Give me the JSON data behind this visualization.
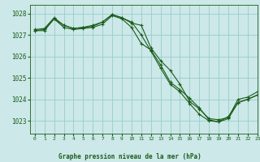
{
  "title": "Graphe pression niveau de la mer (hPa)",
  "background_color": "#cce8e8",
  "grid_color": "#99cccc",
  "line_color": "#1a5c1a",
  "xlim": [
    -0.5,
    23
  ],
  "ylim": [
    1022.4,
    1028.4
  ],
  "yticks": [
    1023,
    1024,
    1025,
    1026,
    1027,
    1028
  ],
  "xticks": [
    0,
    1,
    2,
    3,
    4,
    5,
    6,
    7,
    8,
    9,
    10,
    11,
    12,
    13,
    14,
    15,
    16,
    17,
    18,
    19,
    20,
    21,
    22,
    23
  ],
  "series1": [
    1027.2,
    1027.2,
    1027.75,
    1027.45,
    1027.3,
    1027.35,
    1027.4,
    1027.6,
    1027.95,
    1027.8,
    1027.55,
    1027.45,
    1026.4,
    1025.8,
    1025.35,
    1024.7,
    1023.9,
    1023.55,
    1023.1,
    1023.05,
    1023.15,
    1024.0,
    1024.1,
    1024.35
  ],
  "series2": [
    1027.2,
    1027.25,
    1027.75,
    1027.35,
    1027.25,
    1027.3,
    1027.35,
    1027.5,
    1027.9,
    1027.75,
    1027.35,
    1026.6,
    1026.3,
    1025.6,
    1024.8,
    1024.45,
    1024.05,
    1023.6,
    1023.05,
    1022.95,
    1023.2,
    1023.85,
    1024.0,
    1024.2
  ],
  "series3": [
    1027.25,
    1027.3,
    1027.8,
    1027.45,
    1027.3,
    1027.35,
    1027.45,
    1027.6,
    1027.95,
    1027.8,
    1027.6,
    1027.0,
    1026.25,
    1025.45,
    1024.7,
    1024.35,
    1023.8,
    1023.3,
    1023.0,
    1022.95,
    1023.1,
    1023.85,
    1024.0,
    1024.2
  ]
}
